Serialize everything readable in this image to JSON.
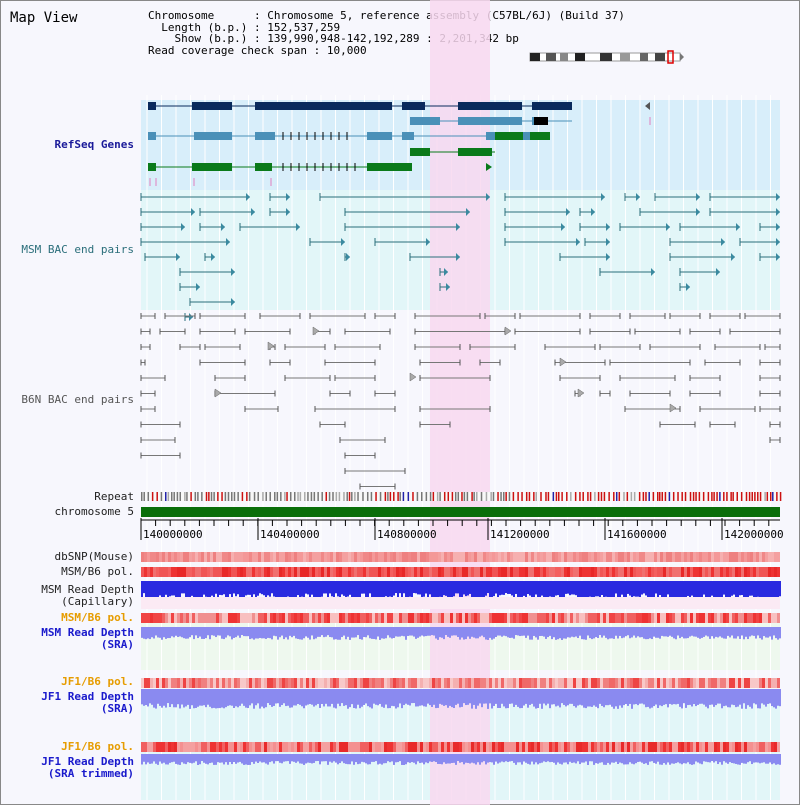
{
  "title": "Map View",
  "info": {
    "chromosome_key": "Chromosome",
    "chromosome_val": "Chromosome 5, reference assembly (C57BL/6J) (Build 37)",
    "length_key": "Length (b.p.)",
    "length_val": "152,537,259",
    "show_key": "Show (b.p.)",
    "show_val": "139,990,948-142,192,289 : 2,201,342 bp",
    "coverage_key": "Read coverage check span",
    "coverage_val": "10,000"
  },
  "tracks": {
    "refseq": "RefSeq Genes",
    "msm_bac": "MSM BAC end pairs",
    "b6n_bac": "B6N BAC end pairs",
    "repeat": "Repeat",
    "chromosome": "chromosome 5",
    "dbsnp": "dbSNP(Mouse)",
    "msm_b6_pol": "MSM/B6 pol.",
    "msm_depth_cap_1": "MSM Read Depth",
    "msm_depth_cap_2": "(Capillary)",
    "msm_b6_pol_2": "MSM/B6 pol.",
    "msm_depth_sra_1": "MSM Read Depth",
    "msm_depth_sra_2": "(SRA)",
    "jf1_b6_pol": "JF1/B6 pol.",
    "jf1_depth_sra_1": "JF1 Read Depth",
    "jf1_depth_sra_2": "(SRA)",
    "jf1_b6_pol_2": "JF1/B6 pol.",
    "jf1_depth_trim_1": "JF1 Read Depth",
    "jf1_depth_trim_2": "(SRA trimmed)"
  },
  "axis": {
    "ticks": [
      "140000000",
      "140400000",
      "140800000",
      "141200000",
      "141600000",
      "142000000"
    ]
  },
  "colors": {
    "highlight": "#f8d8f0",
    "refseq_bg": "#d8eefa",
    "msm_bg": "#e2f6f8",
    "refseq_dark": "#0a2a5c",
    "refseq_mid": "#4a90b8",
    "refseq_green": "#0a7a1a",
    "msm_line": "#2a6e7a",
    "b6n_line": "#777777",
    "chromosome_bar": "#0a6e0a",
    "depth_blue": "#2a2ae0",
    "depth_light": "#8a8af0",
    "pol_red": "#ee4444"
  }
}
